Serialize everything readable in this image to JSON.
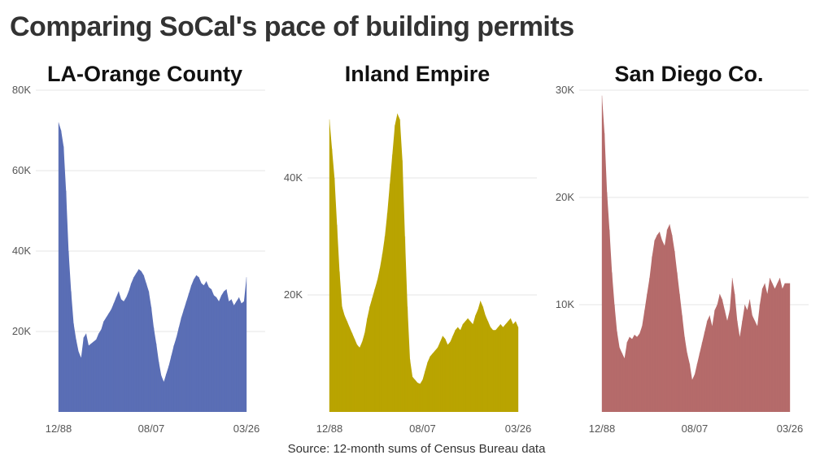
{
  "title": "Comparing SoCal's pace of building permits",
  "source": "Source: 12-month sums of Census Bureau data",
  "chart_data": [
    {
      "type": "area",
      "title": "LA-Orange County",
      "color": "#5a6eb5",
      "x_ticks": [
        "12/88",
        "08/07",
        "03/26"
      ],
      "x": [
        "12/88",
        "07/89",
        "12/89",
        "06/90",
        "12/90",
        "06/91",
        "12/91",
        "06/92",
        "12/92",
        "06/93",
        "12/93",
        "06/94",
        "12/94",
        "06/95",
        "12/95",
        "06/96",
        "12/96",
        "06/97",
        "12/97",
        "06/98",
        "12/98",
        "06/99",
        "12/99",
        "06/00",
        "12/00",
        "06/01",
        "12/01",
        "06/02",
        "12/02",
        "06/03",
        "12/03",
        "06/04",
        "12/04",
        "06/05",
        "12/05",
        "06/06",
        "12/06",
        "08/07",
        "12/07",
        "06/08",
        "12/08",
        "06/09",
        "12/09",
        "06/10",
        "12/10",
        "06/11",
        "12/11",
        "06/12",
        "12/12",
        "06/13",
        "12/13",
        "06/14",
        "12/14",
        "06/15",
        "12/15",
        "06/16",
        "12/16",
        "06/17",
        "12/17",
        "06/18",
        "12/18",
        "06/19",
        "12/19",
        "06/20",
        "12/20",
        "06/21",
        "12/21",
        "06/22",
        "12/22",
        "06/23",
        "12/23",
        "06/24",
        "12/24",
        "06/25",
        "12/25",
        "03/26"
      ],
      "values": [
        72000,
        70000,
        66000,
        55000,
        40000,
        30000,
        22000,
        18000,
        15000,
        13500,
        18500,
        19500,
        16500,
        17000,
        17500,
        18000,
        19500,
        20500,
        22500,
        23500,
        24500,
        25500,
        27000,
        28500,
        30000,
        28000,
        27500,
        28500,
        30000,
        32000,
        33500,
        34500,
        35500,
        35000,
        34000,
        32000,
        30000,
        26000,
        21000,
        17000,
        12500,
        9000,
        7500,
        9500,
        11500,
        14000,
        16500,
        18500,
        21000,
        23500,
        25500,
        27500,
        29500,
        31500,
        33000,
        34000,
        33500,
        32000,
        31500,
        32500,
        31000,
        30500,
        29000,
        28500,
        27500,
        29000,
        30000,
        30500,
        27500,
        28000,
        26500,
        27500,
        28500,
        27000,
        27500,
        33500
      ],
      "y_ticks": [
        20000,
        40000,
        60000,
        80000
      ],
      "y_tick_labels": [
        "20K",
        "40K",
        "60K",
        "80K"
      ],
      "ylim": [
        0,
        80000
      ]
    },
    {
      "type": "area",
      "title": "Inland Empire",
      "color": "#b9a400",
      "x_ticks": [
        "12/88",
        "08/07",
        "03/26"
      ],
      "x": [
        "12/88",
        "07/89",
        "12/89",
        "06/90",
        "12/90",
        "06/91",
        "12/91",
        "06/92",
        "12/92",
        "06/93",
        "12/93",
        "06/94",
        "12/94",
        "06/95",
        "12/95",
        "06/96",
        "12/96",
        "06/97",
        "12/97",
        "06/98",
        "12/98",
        "06/99",
        "12/99",
        "06/00",
        "12/00",
        "06/01",
        "12/01",
        "06/02",
        "12/02",
        "06/03",
        "12/03",
        "06/04",
        "12/04",
        "06/05",
        "12/05",
        "06/06",
        "12/06",
        "08/07",
        "12/07",
        "06/08",
        "12/08",
        "06/09",
        "12/09",
        "06/10",
        "12/10",
        "06/11",
        "12/11",
        "06/12",
        "12/12",
        "06/13",
        "12/13",
        "06/14",
        "12/14",
        "06/15",
        "12/15",
        "06/16",
        "12/16",
        "06/17",
        "12/17",
        "06/18",
        "12/18",
        "06/19",
        "12/19",
        "06/20",
        "12/20",
        "06/21",
        "12/21",
        "06/22",
        "12/22",
        "06/23",
        "12/23",
        "06/24",
        "12/24",
        "06/25",
        "12/25",
        "03/26"
      ],
      "values": [
        50000,
        45000,
        40000,
        32000,
        24000,
        18000,
        16500,
        15500,
        14500,
        13500,
        12500,
        11500,
        11000,
        12000,
        13500,
        16000,
        18000,
        19500,
        21000,
        22500,
        24500,
        27000,
        30000,
        34000,
        39000,
        44000,
        49000,
        51000,
        50000,
        43000,
        30000,
        18000,
        9000,
        6000,
        5500,
        5000,
        4800,
        5500,
        7000,
        8500,
        9500,
        10000,
        10500,
        11000,
        12000,
        13000,
        12500,
        11500,
        12000,
        13000,
        14000,
        14500,
        14000,
        15000,
        15500,
        16000,
        15500,
        15000,
        16500,
        17500,
        19000,
        18000,
        16500,
        15500,
        14500,
        14000,
        14000,
        14500,
        15000,
        14500,
        15000,
        15500,
        16000,
        15000,
        15500,
        14500
      ],
      "y_ticks": [
        20000,
        40000
      ],
      "y_tick_labels": [
        "20K",
        "40K"
      ],
      "ylim": [
        0,
        55000
      ]
    },
    {
      "type": "area",
      "title": "San Diego Co.",
      "color": "#b56b6a",
      "x_ticks": [
        "12/88",
        "08/07",
        "03/26"
      ],
      "x": [
        "12/88",
        "07/89",
        "12/89",
        "06/90",
        "12/90",
        "06/91",
        "12/91",
        "06/92",
        "12/92",
        "06/93",
        "12/93",
        "06/94",
        "12/94",
        "06/95",
        "12/95",
        "06/96",
        "12/96",
        "06/97",
        "12/97",
        "06/98",
        "12/98",
        "06/99",
        "12/99",
        "06/00",
        "12/00",
        "06/01",
        "12/01",
        "06/02",
        "12/02",
        "06/03",
        "12/03",
        "06/04",
        "12/04",
        "06/05",
        "12/05",
        "06/06",
        "12/06",
        "08/07",
        "12/07",
        "06/08",
        "12/08",
        "06/09",
        "12/09",
        "06/10",
        "12/10",
        "06/11",
        "12/11",
        "06/12",
        "12/12",
        "06/13",
        "12/13",
        "06/14",
        "12/14",
        "06/15",
        "12/15",
        "06/16",
        "12/16",
        "06/17",
        "12/17",
        "06/18",
        "12/18",
        "06/19",
        "12/19",
        "06/20",
        "12/20",
        "06/21",
        "12/21",
        "06/22",
        "12/22",
        "06/23",
        "12/23",
        "06/24",
        "12/24",
        "06/25",
        "12/25",
        "03/26"
      ],
      "values": [
        29500,
        26000,
        20500,
        17000,
        13000,
        10000,
        7500,
        6000,
        5500,
        5000,
        6500,
        7000,
        6800,
        7200,
        7000,
        7300,
        8000,
        9500,
        11000,
        12500,
        14500,
        16000,
        16500,
        16800,
        16000,
        15500,
        17000,
        17500,
        16500,
        15000,
        13000,
        11000,
        9000,
        7000,
        5500,
        4500,
        3000,
        3500,
        4500,
        5500,
        6500,
        7500,
        8500,
        9000,
        8000,
        9500,
        10000,
        11000,
        10500,
        9500,
        8500,
        9500,
        12500,
        11000,
        8500,
        7000,
        8500,
        10000,
        9500,
        10500,
        9000,
        8500,
        8000,
        10000,
        11500,
        12000,
        11000,
        12500,
        12000,
        11500,
        12000,
        12500,
        11500,
        12000,
        12000,
        12000
      ],
      "y_ticks": [
        10000,
        20000,
        30000
      ],
      "y_tick_labels": [
        "10K",
        "20K",
        "30K"
      ],
      "ylim": [
        0,
        30000
      ]
    }
  ]
}
